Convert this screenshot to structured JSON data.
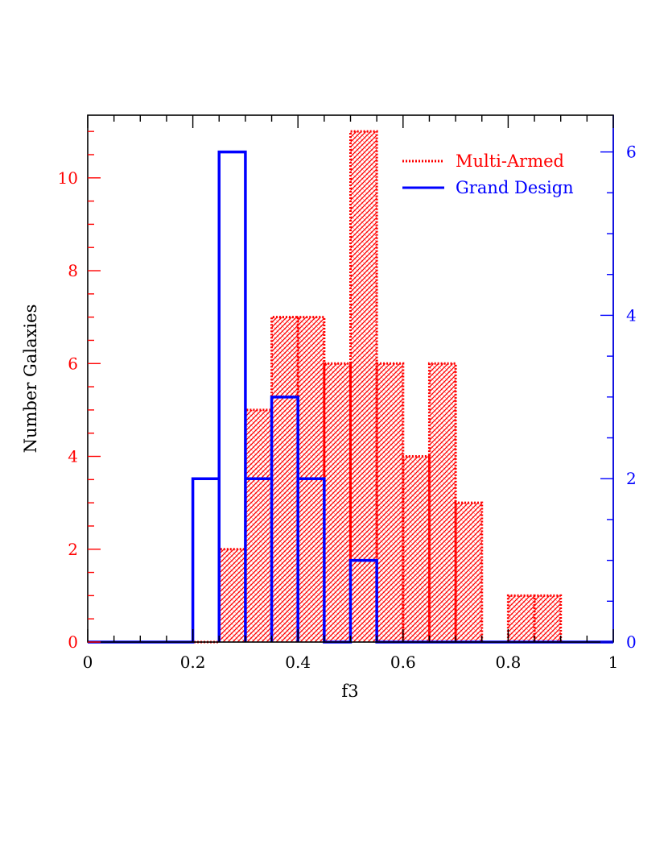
{
  "chart_data": {
    "type": "histogram",
    "xlabel": "f3",
    "ylabel": "Number Galaxies",
    "xlim": [
      0,
      1
    ],
    "ylim_left": [
      0,
      11.35
    ],
    "ylim_right": [
      0,
      6.45
    ],
    "bin_width": 0.05,
    "x_ticks": [
      "0",
      "0.2",
      "0.4",
      "0.6",
      "0.8",
      "1"
    ],
    "y_ticks_left": [
      "0",
      "2",
      "4",
      "6",
      "8",
      "10"
    ],
    "y_ticks_right": [
      "0",
      "2",
      "4",
      "6"
    ],
    "colors": {
      "multi": "#ff0000",
      "grand": "#0000ff",
      "axis": "#000000"
    },
    "legend_placement": "top-right",
    "series": [
      {
        "name": "Multi-Armed",
        "axis": "left",
        "style": "dotted outline, hatched fill",
        "bins": [
          {
            "x0": 0.25,
            "x1": 0.3,
            "count": 2
          },
          {
            "x0": 0.3,
            "x1": 0.35,
            "count": 5
          },
          {
            "x0": 0.35,
            "x1": 0.4,
            "count": 7
          },
          {
            "x0": 0.4,
            "x1": 0.45,
            "count": 7
          },
          {
            "x0": 0.45,
            "x1": 0.5,
            "count": 6
          },
          {
            "x0": 0.5,
            "x1": 0.55,
            "count": 11
          },
          {
            "x0": 0.55,
            "x1": 0.6,
            "count": 6
          },
          {
            "x0": 0.6,
            "x1": 0.65,
            "count": 4
          },
          {
            "x0": 0.65,
            "x1": 0.7,
            "count": 6
          },
          {
            "x0": 0.7,
            "x1": 0.75,
            "count": 3
          },
          {
            "x0": 0.8,
            "x1": 0.85,
            "count": 1
          },
          {
            "x0": 0.85,
            "x1": 0.9,
            "count": 1
          }
        ]
      },
      {
        "name": "Grand Design",
        "axis": "right",
        "style": "solid outline",
        "bins": [
          {
            "x0": 0.2,
            "x1": 0.25,
            "count": 2
          },
          {
            "x0": 0.25,
            "x1": 0.3,
            "count": 6
          },
          {
            "x0": 0.3,
            "x1": 0.35,
            "count": 2
          },
          {
            "x0": 0.35,
            "x1": 0.4,
            "count": 3
          },
          {
            "x0": 0.4,
            "x1": 0.45,
            "count": 2
          },
          {
            "x0": 0.5,
            "x1": 0.55,
            "count": 1
          }
        ]
      }
    ]
  }
}
